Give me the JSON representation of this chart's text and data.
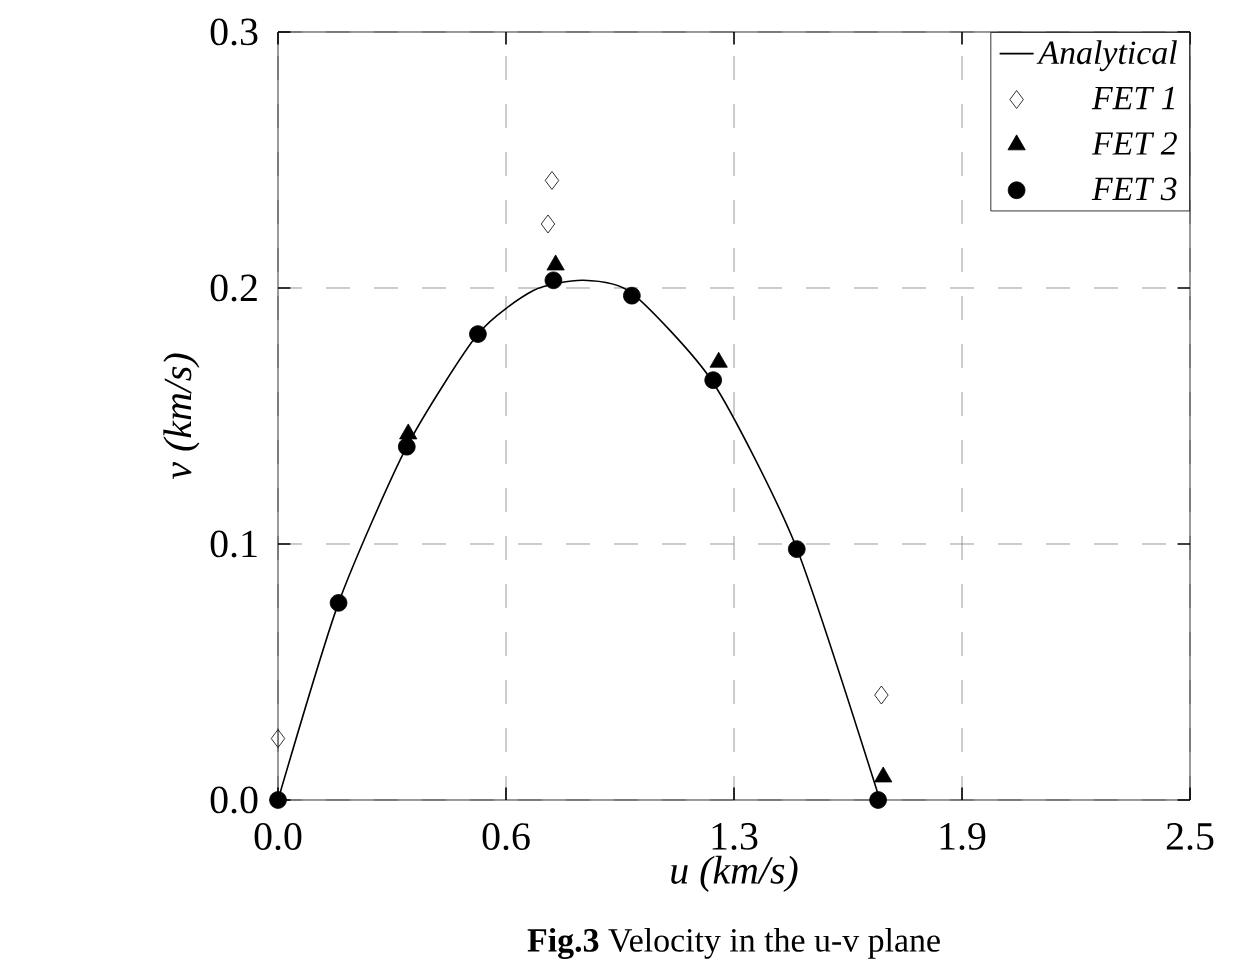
{
  "chart_data": {
    "type": "scatter",
    "xlabel": "u (km/s)",
    "ylabel": "v (km/s)",
    "xlim": [
      0,
      2.5
    ],
    "ylim": [
      0,
      0.3
    ],
    "xticks": [
      {
        "value": 0,
        "label": "0.0"
      },
      {
        "value": 0.625,
        "label": "0.6"
      },
      {
        "value": 1.25,
        "label": "1.3"
      },
      {
        "value": 1.875,
        "label": "1.9"
      },
      {
        "value": 2.5,
        "label": "2.5"
      }
    ],
    "yticks": [
      {
        "value": 0,
        "label": "0.0"
      },
      {
        "value": 0.1,
        "label": "0.1"
      },
      {
        "value": 0.2,
        "label": "0.2"
      },
      {
        "value": 0.3,
        "label": "0.3"
      }
    ],
    "grid": true,
    "legend": "top right",
    "annotations": [
      "**Fig.3** Velocity in the u-v plane"
    ],
    "series": [
      {
        "name": "Analytical",
        "type": "line",
        "color": "#000000",
        "marker": "none",
        "line_style": "solid",
        "x": [
          0,
          0.166,
          0.353,
          0.548,
          0.7,
          0.837,
          0.97,
          1.193,
          1.42,
          1.65
        ],
        "values": [
          0,
          0.077,
          0.138,
          0.182,
          0.199,
          0.203,
          0.198,
          0.163,
          0.099,
          0
        ]
      },
      {
        "name": "FET 1",
        "color": "#000000",
        "marker": "diamond",
        "x": [
          0,
          0.74,
          0.751,
          1.654
        ],
        "values": [
          0.024,
          0.225,
          0.242,
          0.041
        ]
      },
      {
        "name": "FET 2",
        "color": "#000000",
        "marker": "triangle",
        "x": [
          0.357,
          0.761,
          1.208,
          1.659
        ],
        "values": [
          0.143,
          0.209,
          0.171,
          0.009
        ]
      },
      {
        "name": "FET 3",
        "color": "#000000",
        "marker": "circle",
        "x": [
          0,
          0.166,
          0.353,
          0.548,
          0.755,
          0.97,
          1.193,
          1.422,
          1.645
        ],
        "values": [
          0,
          0.077,
          0.138,
          0.182,
          0.203,
          0.197,
          0.164,
          0.098,
          0
        ]
      }
    ]
  }
}
